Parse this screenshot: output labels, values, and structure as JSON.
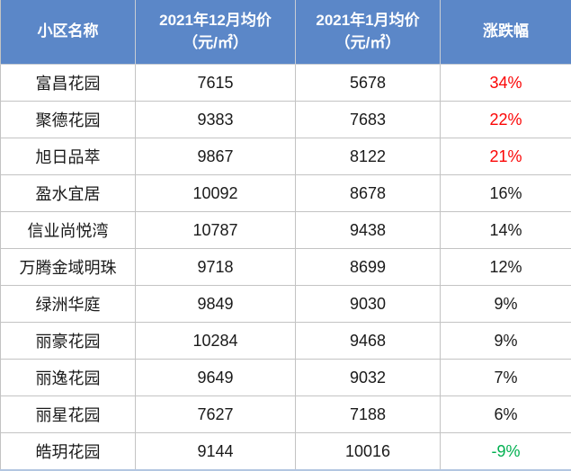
{
  "colors": {
    "header_bg": "#5b87c8",
    "header_text": "#ffffff",
    "grid_border": "#c3c3c3",
    "bottom_border": "#b3c6e1",
    "rise_strong": "#fb0505",
    "neutral": "#1a1a1a",
    "fall": "#00b050"
  },
  "table": {
    "headers": {
      "name": "小区名称",
      "dec_price": "2021年12月均价\n（元/㎡）",
      "jan_price": "2021年1月均价\n（元/㎡）",
      "change": "涨跌幅"
    },
    "rows": [
      {
        "name": "富昌花园",
        "dec": "7615",
        "jan": "5678",
        "change": "34%",
        "change_color": "#fb0505"
      },
      {
        "name": "聚德花园",
        "dec": "9383",
        "jan": "7683",
        "change": "22%",
        "change_color": "#fb0505"
      },
      {
        "name": "旭日品萃",
        "dec": "9867",
        "jan": "8122",
        "change": "21%",
        "change_color": "#fb0505"
      },
      {
        "name": "盈水宜居",
        "dec": "10092",
        "jan": "8678",
        "change": "16%",
        "change_color": "#1a1a1a"
      },
      {
        "name": "信业尚悦湾",
        "dec": "10787",
        "jan": "9438",
        "change": "14%",
        "change_color": "#1a1a1a"
      },
      {
        "name": "万腾金域明珠",
        "dec": "9718",
        "jan": "8699",
        "change": "12%",
        "change_color": "#1a1a1a"
      },
      {
        "name": "绿洲华庭",
        "dec": "9849",
        "jan": "9030",
        "change": "9%",
        "change_color": "#1a1a1a"
      },
      {
        "name": "丽豪花园",
        "dec": "10284",
        "jan": "9468",
        "change": "9%",
        "change_color": "#1a1a1a"
      },
      {
        "name": "丽逸花园",
        "dec": "9649",
        "jan": "9032",
        "change": "7%",
        "change_color": "#1a1a1a"
      },
      {
        "name": "丽星花园",
        "dec": "7627",
        "jan": "7188",
        "change": "6%",
        "change_color": "#1a1a1a"
      },
      {
        "name": "皓玥花园",
        "dec": "9144",
        "jan": "10016",
        "change": "-9%",
        "change_color": "#00b050"
      }
    ]
  },
  "chart_data": {
    "type": "table",
    "title": "",
    "columns": [
      "小区名称",
      "2021年12月均价（元/㎡）",
      "2021年1月均价（元/㎡）",
      "涨跌幅"
    ],
    "rows": [
      [
        "富昌花园",
        7615,
        5678,
        "34%"
      ],
      [
        "聚德花园",
        9383,
        7683,
        "22%"
      ],
      [
        "旭日品萃",
        9867,
        8122,
        "21%"
      ],
      [
        "盈水宜居",
        10092,
        8678,
        "16%"
      ],
      [
        "信业尚悦湾",
        10787,
        9438,
        "14%"
      ],
      [
        "万腾金域明珠",
        9718,
        8699,
        "12%"
      ],
      [
        "绿洲华庭",
        9849,
        9030,
        "9%"
      ],
      [
        "丽豪花园",
        10284,
        9468,
        "9%"
      ],
      [
        "丽逸花园",
        9649,
        9032,
        "7%"
      ],
      [
        "丽星花园",
        7627,
        7188,
        "6%"
      ],
      [
        "皓玥花园",
        9144,
        10016,
        "-9%"
      ]
    ],
    "notes": "涨跌幅 >= 21% 红色字体；-9% 绿色字体；其余黑色"
  }
}
